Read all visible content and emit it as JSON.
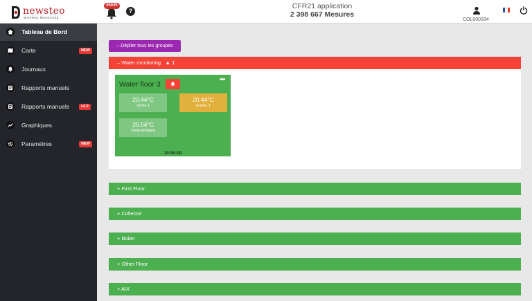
{
  "header": {
    "logo_text": "newsteo",
    "logo_sub": "Wireless Monitoring",
    "notification_count": "45035",
    "help_label": "?",
    "app_title": "CFR21 application",
    "measures": "2 398 667 Mesures",
    "user_code": "COL000334",
    "colors": {
      "brand": "#c0272d"
    }
  },
  "sidebar": {
    "items": [
      {
        "label": "Tableau de Bord",
        "icon": "home-icon",
        "badge": ""
      },
      {
        "label": "Carte",
        "icon": "map-icon",
        "badge": "NEW"
      },
      {
        "label": "Journaux",
        "icon": "bell-icon",
        "badge": ""
      },
      {
        "label": "Rapports manuels",
        "icon": "report-icon",
        "badge": ""
      },
      {
        "label": "Rapports manuels",
        "icon": "report-icon",
        "badge": "v2.0"
      },
      {
        "label": "Graphiques",
        "icon": "chart-icon",
        "badge": ""
      },
      {
        "label": "Paramètres",
        "icon": "gear-icon",
        "badge": "NEW"
      }
    ],
    "active_index": 0
  },
  "main": {
    "expand_all_label": "– Déplier tous les groupes",
    "groups": [
      {
        "label": "– Water monitoring",
        "alert_count": "1",
        "color": "#f44336",
        "expanded": true
      },
      {
        "label": "+ First Floor",
        "color": "#4caf50"
      },
      {
        "label": "+ Collector",
        "color": "#4caf50"
      },
      {
        "label": "+ Boiler",
        "color": "#4caf50"
      },
      {
        "label": "+ Other Floor",
        "color": "#4caf50"
      },
      {
        "label": "+ AIX",
        "color": "#4caf50"
      }
    ],
    "card": {
      "title": "Water floor 3",
      "menu_label": "•••",
      "time": "10:50:00",
      "tiles": [
        {
          "value": "20.44°C",
          "name": "Sortie 1",
          "color": "#81c784"
        },
        {
          "value": "20.44°C",
          "name": "Entrée 1",
          "color": "#e2b03c"
        },
        {
          "value": "20.54°C",
          "name": "Temp Ambiant",
          "color": "#81c784"
        }
      ]
    }
  }
}
